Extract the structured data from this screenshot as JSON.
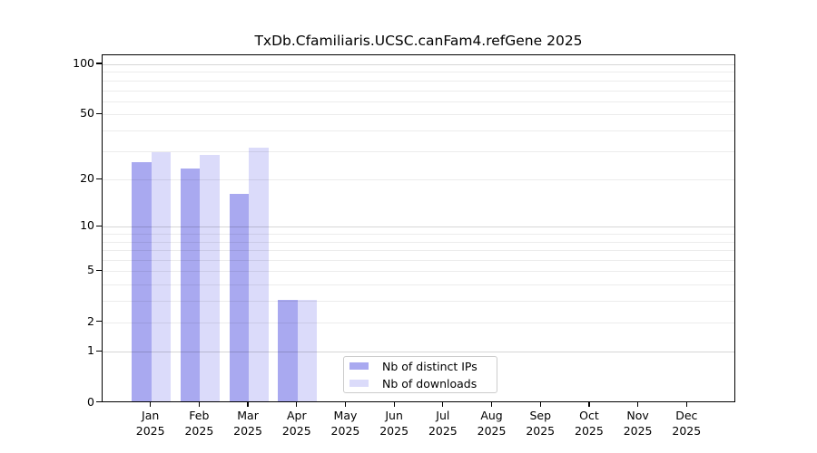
{
  "title": "TxDb.Cfamiliaris.UCSC.canFam4.refGene 2025",
  "chart_data": {
    "type": "bar",
    "title": "TxDb.Cfamiliaris.UCSC.canFam4.refGene 2025",
    "categories": [
      "Jan",
      "Feb",
      "Mar",
      "Apr",
      "May",
      "Jun",
      "Jul",
      "Aug",
      "Sep",
      "Oct",
      "Nov",
      "Dec"
    ],
    "year_label": "2025",
    "series": [
      {
        "name": "Nb of distinct IPs",
        "color": "#a9a9f0",
        "values": [
          25,
          23,
          16,
          3,
          0,
          0,
          0,
          0,
          0,
          0,
          0,
          0
        ]
      },
      {
        "name": "Nb of downloads",
        "color": "#dbdbfa",
        "values": [
          29,
          28,
          31,
          3,
          0,
          0,
          0,
          0,
          0,
          0,
          0,
          0
        ]
      }
    ],
    "xlabel": "",
    "ylabel": "",
    "yscale": "log10(1+v)",
    "yticks": [
      0,
      1,
      2,
      5,
      10,
      20,
      50,
      100
    ],
    "minor_gridlines": [
      2,
      3,
      4,
      5,
      6,
      7,
      8,
      9,
      20,
      30,
      40,
      50,
      60,
      70,
      80,
      90
    ],
    "major_gridlines": [
      1,
      10,
      100
    ],
    "ylim": [
      0,
      113
    ],
    "grid": true,
    "legend_position": "lower center",
    "colors": {
      "bar_dark": "#a9a9f0",
      "bar_light": "#dbdbfa",
      "spine": "#000000",
      "legend_border": "#cccccc"
    }
  }
}
